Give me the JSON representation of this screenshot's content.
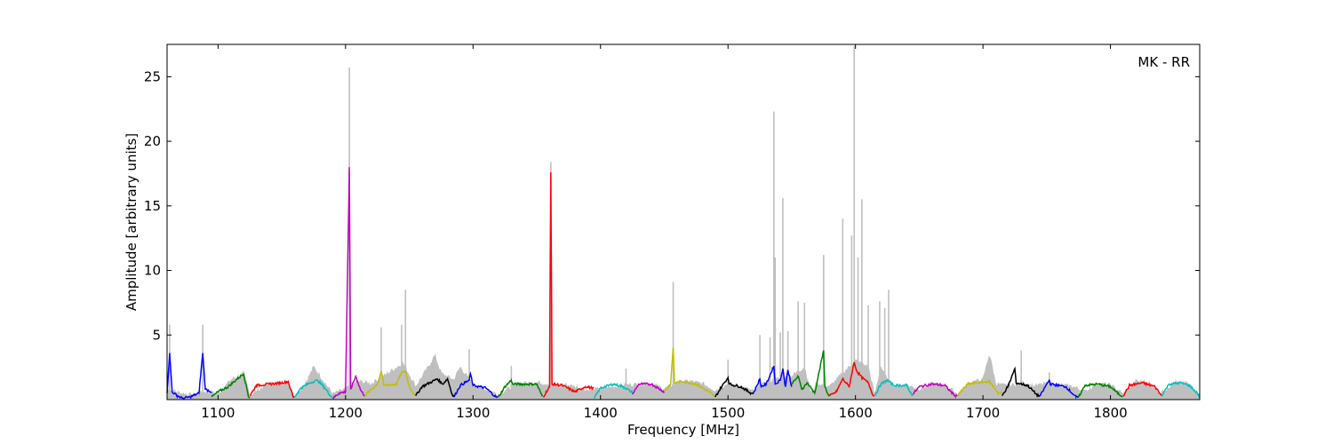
{
  "chart_data": {
    "type": "line",
    "annotation": "MK - RR",
    "xlabel": "Frequency [MHz]",
    "ylabel": "Amplitude [arbitrary units]",
    "xlim": [
      1060,
      1870
    ],
    "ylim": [
      0,
      27.5
    ],
    "xticks": [
      1100,
      1200,
      1300,
      1400,
      1500,
      1600,
      1700,
      1800
    ],
    "yticks": [
      5,
      10,
      15,
      20,
      25
    ],
    "grid": false,
    "background_series": {
      "color": "#bfbfbf",
      "base": [
        [
          1060,
          0.8
        ],
        [
          1070,
          0.5
        ],
        [
          1080,
          0.3
        ],
        [
          1090,
          0.6
        ],
        [
          1100,
          0.4
        ],
        [
          1110,
          1.5
        ],
        [
          1120,
          2.0
        ],
        [
          1125,
          0.3
        ],
        [
          1140,
          1.2
        ],
        [
          1155,
          1.3
        ],
        [
          1160,
          0.2
        ],
        [
          1170,
          1.5
        ],
        [
          1175,
          2.5
        ],
        [
          1180,
          1.8
        ],
        [
          1190,
          0.4
        ],
        [
          1200,
          0.8
        ],
        [
          1210,
          1.4
        ],
        [
          1220,
          1.2
        ],
        [
          1230,
          1.8
        ],
        [
          1245,
          2.8
        ],
        [
          1255,
          1.0
        ],
        [
          1265,
          2.5
        ],
        [
          1270,
          3.4
        ],
        [
          1275,
          2.0
        ],
        [
          1285,
          1.5
        ],
        [
          1290,
          2.5
        ],
        [
          1300,
          1.1
        ],
        [
          1320,
          0.4
        ],
        [
          1335,
          1.2
        ],
        [
          1350,
          1.3
        ],
        [
          1360,
          1.2
        ],
        [
          1375,
          1.1
        ],
        [
          1390,
          0.7
        ],
        [
          1400,
          0.8
        ],
        [
          1420,
          1.1
        ],
        [
          1440,
          1.2
        ],
        [
          1450,
          0.8
        ],
        [
          1460,
          1.3
        ],
        [
          1470,
          1.4
        ],
        [
          1480,
          1.2
        ],
        [
          1490,
          0.7
        ],
        [
          1500,
          1.2
        ],
        [
          1510,
          1.0
        ],
        [
          1520,
          0.6
        ],
        [
          1530,
          1.3
        ],
        [
          1540,
          1.6
        ],
        [
          1550,
          1.8
        ],
        [
          1560,
          2.5
        ],
        [
          1565,
          0.5
        ],
        [
          1570,
          1.2
        ],
        [
          1580,
          1.0
        ],
        [
          1590,
          2.0
        ],
        [
          1600,
          3.0
        ],
        [
          1610,
          2.5
        ],
        [
          1615,
          0.3
        ],
        [
          1620,
          2.5
        ],
        [
          1625,
          1.5
        ],
        [
          1630,
          1.0
        ],
        [
          1640,
          1.1
        ],
        [
          1650,
          0.8
        ],
        [
          1660,
          1.2
        ],
        [
          1670,
          1.1
        ],
        [
          1680,
          0.4
        ],
        [
          1690,
          1.3
        ],
        [
          1700,
          1.5
        ],
        [
          1705,
          3.5
        ],
        [
          1710,
          1.2
        ],
        [
          1720,
          1.0
        ],
        [
          1730,
          1.3
        ],
        [
          1740,
          1.0
        ],
        [
          1750,
          1.2
        ],
        [
          1770,
          1.0
        ],
        [
          1780,
          0.6
        ],
        [
          1790,
          1.2
        ],
        [
          1800,
          1.1
        ],
        [
          1810,
          0.4
        ],
        [
          1820,
          1.4
        ],
        [
          1830,
          1.3
        ],
        [
          1840,
          0.5
        ],
        [
          1850,
          1.3
        ],
        [
          1860,
          1.2
        ],
        [
          1870,
          0.3
        ]
      ],
      "spikes": [
        [
          1062,
          5.8
        ],
        [
          1088,
          5.8
        ],
        [
          1203,
          25.7
        ],
        [
          1228,
          5.6
        ],
        [
          1244,
          5.8
        ],
        [
          1247,
          8.5
        ],
        [
          1297,
          3.9
        ],
        [
          1330,
          2.6
        ],
        [
          1361,
          18.4
        ],
        [
          1420,
          2.4
        ],
        [
          1457,
          9.1
        ],
        [
          1500,
          3.1
        ],
        [
          1525,
          5.0
        ],
        [
          1533,
          4.8
        ],
        [
          1536,
          22.3
        ],
        [
          1537,
          11.0
        ],
        [
          1541,
          5.2
        ],
        [
          1543,
          15.6
        ],
        [
          1547,
          5.3
        ],
        [
          1555,
          7.6
        ],
        [
          1560,
          7.5
        ],
        [
          1575,
          11.2
        ],
        [
          1590,
          14.0
        ],
        [
          1597,
          12.7
        ],
        [
          1599,
          27.4
        ],
        [
          1602,
          11.0
        ],
        [
          1605,
          15.5
        ],
        [
          1610,
          7.3
        ],
        [
          1619,
          7.6
        ],
        [
          1623,
          7.1
        ],
        [
          1626,
          8.5
        ],
        [
          1730,
          3.8
        ],
        [
          1752,
          2.1
        ]
      ]
    },
    "series": [
      {
        "color": "#0000ff",
        "start": 1060,
        "end": 1095,
        "points": [
          [
            1060,
            0.5
          ],
          [
            1062,
            3.6
          ],
          [
            1064,
            0.6
          ],
          [
            1068,
            0.3
          ],
          [
            1072,
            0.1
          ],
          [
            1078,
            0.2
          ],
          [
            1085,
            0.5
          ],
          [
            1088,
            3.6
          ],
          [
            1090,
            0.8
          ],
          [
            1095,
            0.6
          ]
        ]
      },
      {
        "color": "#008000",
        "start": 1095,
        "end": 1125,
        "points": [
          [
            1095,
            0.2
          ],
          [
            1100,
            0.6
          ],
          [
            1108,
            1.0
          ],
          [
            1115,
            1.6
          ],
          [
            1120,
            2.0
          ],
          [
            1124,
            0.2
          ]
        ]
      },
      {
        "color": "#ff0000",
        "start": 1125,
        "end": 1160,
        "points": [
          [
            1125,
            0.3
          ],
          [
            1130,
            1.1
          ],
          [
            1140,
            1.2
          ],
          [
            1150,
            1.3
          ],
          [
            1155,
            1.4
          ],
          [
            1159,
            0.2
          ]
        ]
      },
      {
        "color": "#00bfbf",
        "start": 1160,
        "end": 1190,
        "points": [
          [
            1160,
            0.2
          ],
          [
            1165,
            0.9
          ],
          [
            1172,
            1.3
          ],
          [
            1178,
            1.5
          ],
          [
            1183,
            1.0
          ],
          [
            1189,
            0.2
          ]
        ]
      },
      {
        "color": "#bf00bf",
        "start": 1190,
        "end": 1215,
        "points": [
          [
            1190,
            0.1
          ],
          [
            1195,
            0.5
          ],
          [
            1200,
            0.6
          ],
          [
            1203,
            18.0
          ],
          [
            1204,
            0.8
          ],
          [
            1208,
            1.8
          ],
          [
            1212,
            0.7
          ],
          [
            1215,
            0.3
          ]
        ]
      },
      {
        "color": "#bfbf00",
        "start": 1215,
        "end": 1255,
        "points": [
          [
            1215,
            0.3
          ],
          [
            1225,
            1.2
          ],
          [
            1228,
            2.2
          ],
          [
            1230,
            1.1
          ],
          [
            1240,
            1.2
          ],
          [
            1244,
            2.1
          ],
          [
            1247,
            2.2
          ],
          [
            1250,
            1.0
          ],
          [
            1254,
            0.4
          ]
        ]
      },
      {
        "color": "#000000",
        "start": 1255,
        "end": 1285,
        "points": [
          [
            1255,
            0.3
          ],
          [
            1260,
            1.0
          ],
          [
            1268,
            1.4
          ],
          [
            1272,
            1.6
          ],
          [
            1276,
            1.2
          ],
          [
            1280,
            1.6
          ],
          [
            1284,
            0.3
          ]
        ]
      },
      {
        "color": "#0000ff",
        "start": 1285,
        "end": 1320,
        "points": [
          [
            1285,
            0.2
          ],
          [
            1290,
            1.1
          ],
          [
            1297,
            1.5
          ],
          [
            1298,
            2.0
          ],
          [
            1300,
            1.1
          ],
          [
            1310,
            0.9
          ],
          [
            1318,
            0.2
          ]
        ]
      },
      {
        "color": "#008000",
        "start": 1320,
        "end": 1355,
        "points": [
          [
            1320,
            0.2
          ],
          [
            1325,
            1.0
          ],
          [
            1330,
            1.5
          ],
          [
            1331,
            1.2
          ],
          [
            1340,
            1.2
          ],
          [
            1350,
            1.2
          ],
          [
            1354,
            0.3
          ]
        ]
      },
      {
        "color": "#ff0000",
        "start": 1355,
        "end": 1395,
        "points": [
          [
            1355,
            0.2
          ],
          [
            1360,
            1.0
          ],
          [
            1361,
            17.6
          ],
          [
            1362,
            1.2
          ],
          [
            1370,
            1.1
          ],
          [
            1380,
            0.6
          ],
          [
            1388,
            1.0
          ],
          [
            1394,
            0.9
          ]
        ]
      },
      {
        "color": "#00bfbf",
        "start": 1395,
        "end": 1425,
        "points": [
          [
            1395,
            0.1
          ],
          [
            1400,
            0.9
          ],
          [
            1410,
            1.2
          ],
          [
            1418,
            1.0
          ],
          [
            1424,
            0.6
          ]
        ]
      },
      {
        "color": "#bf00bf",
        "start": 1425,
        "end": 1450,
        "points": [
          [
            1425,
            0.4
          ],
          [
            1430,
            1.2
          ],
          [
            1440,
            1.2
          ],
          [
            1445,
            0.9
          ],
          [
            1450,
            0.6
          ]
        ]
      },
      {
        "color": "#bfbf00",
        "start": 1450,
        "end": 1490,
        "points": [
          [
            1450,
            0.6
          ],
          [
            1455,
            1.2
          ],
          [
            1457,
            4.0
          ],
          [
            1458,
            1.3
          ],
          [
            1465,
            1.4
          ],
          [
            1475,
            1.2
          ],
          [
            1485,
            0.6
          ],
          [
            1490,
            0.2
          ]
        ]
      },
      {
        "color": "#000000",
        "start": 1490,
        "end": 1520,
        "points": [
          [
            1490,
            0.2
          ],
          [
            1495,
            1.0
          ],
          [
            1500,
            1.7
          ],
          [
            1501,
            1.2
          ],
          [
            1510,
            1.0
          ],
          [
            1518,
            0.5
          ]
        ]
      },
      {
        "color": "#0000ff",
        "start": 1520,
        "end": 1550,
        "points": [
          [
            1520,
            0.5
          ],
          [
            1525,
            1.6
          ],
          [
            1526,
            1.0
          ],
          [
            1530,
            1.2
          ],
          [
            1536,
            2.6
          ],
          [
            1537,
            1.2
          ],
          [
            1541,
            1.5
          ],
          [
            1543,
            2.4
          ],
          [
            1545,
            1.0
          ],
          [
            1547,
            2.3
          ],
          [
            1550,
            1.0
          ]
        ]
      },
      {
        "color": "#008000",
        "start": 1550,
        "end": 1580,
        "points": [
          [
            1550,
            1.2
          ],
          [
            1555,
            1.8
          ],
          [
            1558,
            0.8
          ],
          [
            1562,
            1.3
          ],
          [
            1568,
            0.5
          ],
          [
            1575,
            3.8
          ],
          [
            1576,
            1.0
          ],
          [
            1579,
            0.3
          ]
        ]
      },
      {
        "color": "#ff0000",
        "start": 1580,
        "end": 1615,
        "points": [
          [
            1580,
            0.3
          ],
          [
            1585,
            0.6
          ],
          [
            1590,
            1.6
          ],
          [
            1595,
            1.0
          ],
          [
            1599,
            2.9
          ],
          [
            1601,
            2.2
          ],
          [
            1605,
            1.7
          ],
          [
            1610,
            1.3
          ],
          [
            1614,
            0.3
          ]
        ]
      },
      {
        "color": "#00bfbf",
        "start": 1615,
        "end": 1645,
        "points": [
          [
            1615,
            0.3
          ],
          [
            1620,
            1.2
          ],
          [
            1625,
            1.5
          ],
          [
            1630,
            1.1
          ],
          [
            1640,
            1.1
          ],
          [
            1644,
            0.4
          ]
        ]
      },
      {
        "color": "#bf00bf",
        "start": 1645,
        "end": 1680,
        "points": [
          [
            1645,
            0.4
          ],
          [
            1650,
            1.0
          ],
          [
            1660,
            1.2
          ],
          [
            1670,
            1.1
          ],
          [
            1678,
            0.3
          ]
        ]
      },
      {
        "color": "#bfbf00",
        "start": 1680,
        "end": 1715,
        "points": [
          [
            1680,
            0.3
          ],
          [
            1688,
            1.2
          ],
          [
            1695,
            1.3
          ],
          [
            1705,
            1.4
          ],
          [
            1712,
            0.5
          ]
        ]
      },
      {
        "color": "#000000",
        "start": 1715,
        "end": 1745,
        "points": [
          [
            1715,
            0.3
          ],
          [
            1720,
            1.1
          ],
          [
            1725,
            2.4
          ],
          [
            1726,
            1.3
          ],
          [
            1735,
            1.1
          ],
          [
            1743,
            0.3
          ]
        ]
      },
      {
        "color": "#0000ff",
        "start": 1745,
        "end": 1775,
        "points": [
          [
            1745,
            0.3
          ],
          [
            1750,
            1.2
          ],
          [
            1752,
            1.5
          ],
          [
            1753,
            1.2
          ],
          [
            1765,
            1.0
          ],
          [
            1773,
            0.2
          ]
        ]
      },
      {
        "color": "#008000",
        "start": 1775,
        "end": 1810,
        "points": [
          [
            1775,
            0.2
          ],
          [
            1780,
            1.1
          ],
          [
            1790,
            1.2
          ],
          [
            1800,
            1.0
          ],
          [
            1808,
            0.3
          ]
        ]
      },
      {
        "color": "#ff0000",
        "start": 1810,
        "end": 1840,
        "points": [
          [
            1810,
            0.3
          ],
          [
            1815,
            1.1
          ],
          [
            1825,
            1.3
          ],
          [
            1835,
            1.0
          ],
          [
            1840,
            0.3
          ]
        ]
      },
      {
        "color": "#00bfbf",
        "start": 1840,
        "end": 1870,
        "points": [
          [
            1840,
            0.3
          ],
          [
            1846,
            1.2
          ],
          [
            1855,
            1.3
          ],
          [
            1862,
            1.1
          ],
          [
            1868,
            0.5
          ],
          [
            1870,
            0.2
          ]
        ]
      }
    ]
  }
}
